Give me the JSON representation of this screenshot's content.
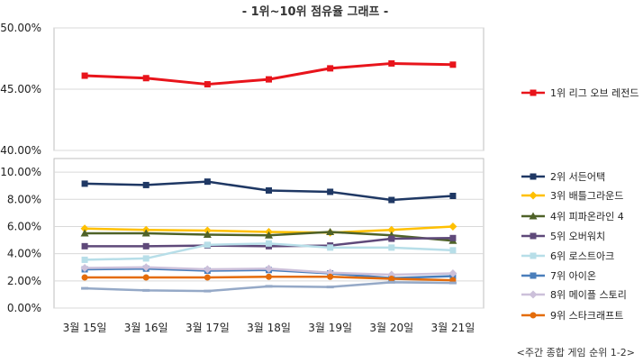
{
  "chart_data": {
    "type": "line",
    "title": "- 1위~10위 점유율 그래프 -",
    "footnote": "<주간 종합 게임 순위 1-2>",
    "xlabel": "",
    "ylabel": "",
    "categories": [
      "3월 15일",
      "3월 16일",
      "3월 17일",
      "3월 18일",
      "3월 19일",
      "3월 20일",
      "3월 21일"
    ],
    "upper_panel": {
      "ylim": [
        40,
        50
      ],
      "tick_labels": [
        "50.00%",
        "45.00%",
        "40.00%"
      ],
      "tick_values": [
        50,
        45,
        40
      ],
      "series": [
        {
          "name": "1위 리그 오브 레전드",
          "color": "#e8141b",
          "marker": "square",
          "values": [
            46.1,
            45.9,
            45.4,
            45.8,
            46.7,
            47.1,
            47.0
          ]
        }
      ]
    },
    "lower_panel": {
      "ylim": [
        0,
        11
      ],
      "tick_labels": [
        "10.00%",
        "8.00%",
        "6.00%",
        "4.00%",
        "2.00%",
        "0.00%"
      ],
      "tick_values": [
        10,
        8,
        6,
        4,
        2,
        0
      ],
      "series": [
        {
          "name": "2위 서든어택",
          "color": "#1f3864",
          "marker": "square",
          "values": [
            9.15,
            9.05,
            9.3,
            8.65,
            8.55,
            7.95,
            8.25
          ]
        },
        {
          "name": "3위 배틀그라운드",
          "color": "#ffc000",
          "marker": "diamond",
          "values": [
            5.85,
            5.75,
            5.7,
            5.6,
            5.55,
            5.75,
            6.0
          ]
        },
        {
          "name": "4위 피파온라인 4",
          "color": "#4f6228",
          "marker": "triangle",
          "values": [
            5.5,
            5.5,
            5.4,
            5.35,
            5.6,
            5.35,
            4.95
          ]
        },
        {
          "name": "5위 오버워치",
          "color": "#5f497a",
          "marker": "square",
          "values": [
            4.55,
            4.55,
            4.6,
            4.55,
            4.6,
            5.1,
            5.15
          ]
        },
        {
          "name": "6위 로스트아크",
          "color": "#b7dee8",
          "marker": "square",
          "values": [
            3.55,
            3.65,
            4.65,
            4.75,
            4.45,
            4.45,
            4.25
          ]
        },
        {
          "name": "7위 아이온",
          "color": "#4a7ebb",
          "marker": "square",
          "values": [
            2.85,
            2.9,
            2.75,
            2.8,
            2.55,
            2.2,
            2.35
          ]
        },
        {
          "name": "8위 메이플 스토리",
          "color": "#ccc0da",
          "marker": "diamond",
          "values": [
            2.95,
            3.0,
            2.85,
            2.9,
            2.6,
            2.45,
            2.55
          ]
        },
        {
          "name": "9위 스타크래프트",
          "color": "#e46c0a",
          "marker": "circle",
          "values": [
            2.25,
            2.25,
            2.25,
            2.3,
            2.3,
            2.15,
            2.05
          ]
        },
        {
          "name": "",
          "color": "#95a9c7",
          "marker": "dash",
          "values": [
            1.45,
            1.3,
            1.25,
            1.6,
            1.55,
            1.9,
            1.85
          ]
        }
      ]
    },
    "grid": "horizontal",
    "legend_position": "right"
  }
}
